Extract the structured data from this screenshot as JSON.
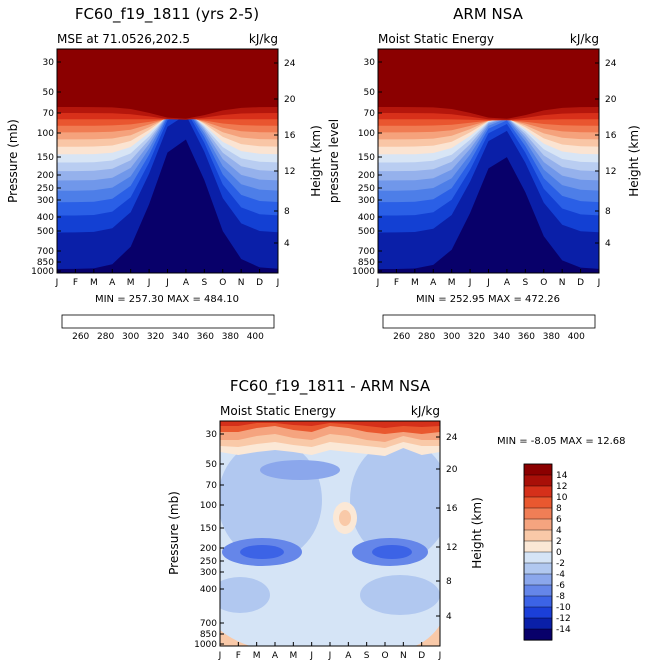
{
  "chart_data": [
    {
      "type": "heatmap",
      "title": "FC60_f19_1811 (yrs 2-5)",
      "subtitle_left": "MSE at 71.0526,202.5",
      "subtitle_right": "kJ/kg",
      "ylabel": "Pressure (mb)",
      "ylabel_right": "Height (km)",
      "x_ticks": [
        "J",
        "F",
        "M",
        "A",
        "M",
        "J",
        "J",
        "A",
        "S",
        "O",
        "N",
        "D",
        "J"
      ],
      "pressure_ticks": [
        "30",
        "50",
        "70",
        "100",
        "150",
        "200",
        "250",
        "300",
        "400",
        "500",
        "700",
        "850",
        "1000"
      ],
      "height_ticks": [
        "24",
        "20",
        "16",
        "12",
        "8",
        "4"
      ],
      "stats": "MIN = 257.30 MAX = 484.10",
      "colorbar_labels": [
        "260",
        "280",
        "300",
        "320",
        "340",
        "360",
        "380",
        "400"
      ]
    },
    {
      "type": "heatmap",
      "title": "ARM NSA",
      "subtitle_left": "Moist Static Energy",
      "subtitle_right": "kJ/kg",
      "ylabel": "pressure level",
      "ylabel_right": "Height (km)",
      "x_ticks": [
        "J",
        "F",
        "M",
        "A",
        "M",
        "J",
        "J",
        "A",
        "S",
        "O",
        "N",
        "D",
        "J"
      ],
      "pressure_ticks": [
        "30",
        "50",
        "70",
        "100",
        "150",
        "200",
        "250",
        "300",
        "400",
        "500",
        "700",
        "850",
        "1000"
      ],
      "height_ticks": [
        "24",
        "20",
        "16",
        "12",
        "8",
        "4"
      ],
      "stats": "MIN = 252.95 MAX = 472.26",
      "colorbar_labels": [
        "260",
        "280",
        "300",
        "320",
        "340",
        "360",
        "380",
        "400"
      ]
    },
    {
      "type": "heatmap",
      "title": "FC60_f19_1811 - ARM NSA",
      "subtitle_left": "Moist Static Energy",
      "subtitle_right": "kJ/kg",
      "ylabel": "Pressure (mb)",
      "ylabel_right": "Height (km)",
      "x_ticks": [
        "J",
        "F",
        "M",
        "A",
        "M",
        "J",
        "J",
        "A",
        "S",
        "O",
        "N",
        "D",
        "J"
      ],
      "pressure_ticks": [
        "30",
        "50",
        "70",
        "100",
        "150",
        "200",
        "250",
        "300",
        "400",
        "700",
        "850",
        "1000"
      ],
      "height_ticks": [
        "24",
        "20",
        "16",
        "12",
        "8",
        "4"
      ],
      "stats": "MIN =  -8.05 MAX =  12.68",
      "colorbar_labels": [
        "14",
        "12",
        "10",
        "8",
        "6",
        "4",
        "2",
        "0",
        "-2",
        "-4",
        "-6",
        "-8",
        "-10",
        "-12",
        "-14"
      ]
    }
  ],
  "palettes": {
    "absolute": [
      "#08006a",
      "#0a1fa8",
      "#1340d3",
      "#2a5fe6",
      "#4d7ee8",
      "#7097ea",
      "#95b1ec",
      "#b9cdf1",
      "#d8e5f5",
      "#fbe4d2",
      "#f9c6a6",
      "#f5a27c",
      "#f07b52",
      "#e9552f",
      "#d8301a",
      "#b5160c",
      "#8b0000"
    ],
    "diff": [
      "#08006a",
      "#0a1fa8",
      "#1b3fd8",
      "#3c63e6",
      "#6586e9",
      "#8ba7ec",
      "#b1c8f0",
      "#d5e4f6",
      "#fbe8d6",
      "#f9c9a8",
      "#f5a47f",
      "#f07e56",
      "#e9582f",
      "#d5301a",
      "#a80f08",
      "#8b0000"
    ]
  }
}
